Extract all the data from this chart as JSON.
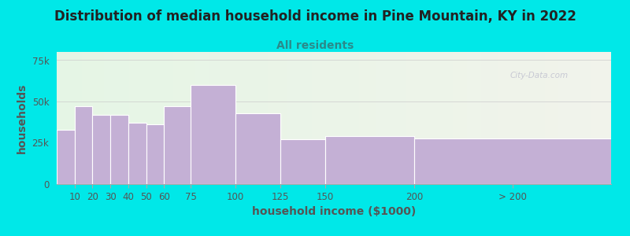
{
  "title": "Distribution of median household income in Pine Mountain, KY in 2022",
  "subtitle": "All residents",
  "xlabel": "household income ($1000)",
  "ylabel": "households",
  "bar_color": "#c4b0d5",
  "background_outer": "#00e8e8",
  "ytick_labels": [
    "0",
    "25k",
    "50k",
    "75k"
  ],
  "ytick_values": [
    0,
    25000,
    50000,
    75000
  ],
  "ylim": [
    0,
    80000
  ],
  "values": [
    33000,
    47000,
    42000,
    42000,
    37000,
    36000,
    47000,
    60000,
    43000,
    27000,
    29000,
    27500
  ],
  "bar_lefts": [
    0,
    10,
    20,
    30,
    40,
    50,
    60,
    75,
    100,
    125,
    150,
    200
  ],
  "bar_rights": [
    10,
    20,
    30,
    40,
    50,
    60,
    75,
    100,
    125,
    150,
    200,
    310
  ],
  "xtick_positions": [
    10,
    20,
    30,
    40,
    50,
    60,
    75,
    100,
    125,
    150,
    200,
    255
  ],
  "xtick_labels": [
    "10",
    "20",
    "30",
    "40",
    "50",
    "60",
    "75",
    "100",
    "125",
    "150",
    "200",
    "> 200"
  ],
  "xlim": [
    0,
    310
  ],
  "watermark": "City-Data.com",
  "title_fontsize": 12,
  "subtitle_fontsize": 10,
  "label_fontsize": 10,
  "tick_fontsize": 8.5,
  "title_color": "#222222",
  "subtitle_color": "#2a8a8a",
  "label_color": "#555555"
}
